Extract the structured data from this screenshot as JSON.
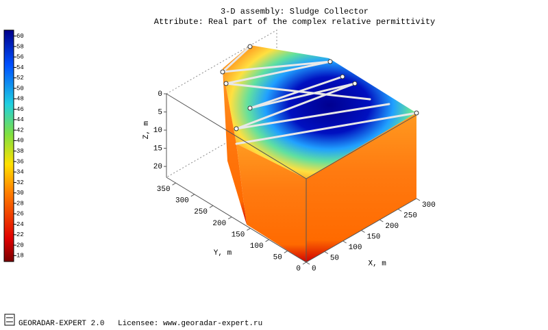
{
  "chart_data": {
    "type": "volume3d",
    "title": "3-D assembly: Sludge Collector",
    "subtitle": "Attribute: Real part of the complex relative permittivity",
    "xlabel": "X, m",
    "ylabel": "Y, m",
    "zlabel": "Z, m",
    "xlim": [
      0,
      300
    ],
    "xticks": [
      0,
      50,
      100,
      150,
      200,
      250,
      300
    ],
    "ylim": [
      0,
      375
    ],
    "yticks": [
      0,
      50,
      100,
      150,
      200,
      250,
      300,
      350
    ],
    "zlim": [
      0,
      23
    ],
    "zticks": [
      0,
      5,
      10,
      15,
      20
    ],
    "clim": [
      17,
      61
    ],
    "cticks": [
      18,
      20,
      22,
      24,
      26,
      28,
      30,
      32,
      34,
      36,
      38,
      40,
      42,
      44,
      46,
      48,
      50,
      52,
      54,
      56,
      58,
      60
    ],
    "colormap": "jet"
  },
  "footer": {
    "app": "GEORADAR-EXPERT 2.0",
    "licensee": "Licensee: www.georadar-expert.ru"
  }
}
